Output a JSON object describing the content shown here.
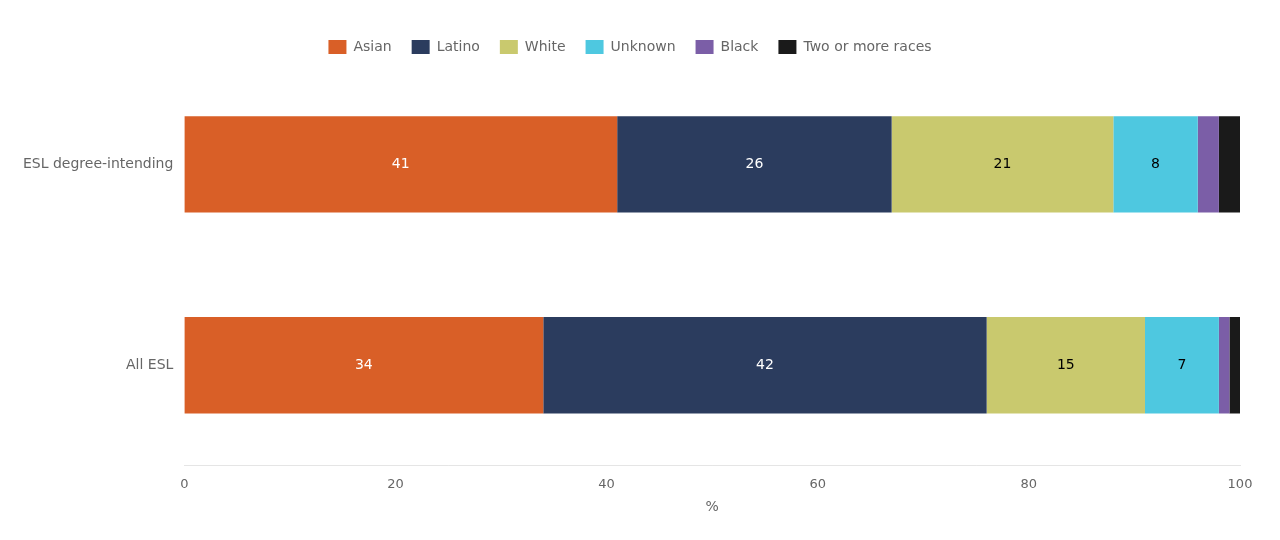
{
  "chart_data": {
    "type": "bar",
    "orientation": "horizontal",
    "stacked": true,
    "categories": [
      "ESL degree-intending",
      "All ESL"
    ],
    "series": [
      {
        "name": "Asian",
        "color": "#d95f27",
        "values": [
          41,
          34
        ],
        "data_labels": true
      },
      {
        "name": "Latino",
        "color": "#2b3c5e",
        "values": [
          26,
          42
        ],
        "data_labels": true
      },
      {
        "name": "White",
        "color": "#c9c96e",
        "values": [
          21,
          15
        ],
        "data_labels": true
      },
      {
        "name": "Unknown",
        "color": "#4ec8e0",
        "values": [
          8,
          7
        ],
        "data_labels": true
      },
      {
        "name": "Black",
        "color": "#7b5ea7",
        "values": [
          2,
          1
        ],
        "data_labels": false
      },
      {
        "name": "Two or more races",
        "color": "#1a1a1a",
        "values": [
          2,
          1
        ],
        "data_labels": false
      }
    ],
    "xlabel": "%",
    "xlim": [
      0,
      100
    ],
    "xticks": [
      0,
      20,
      40,
      60,
      80,
      100
    ],
    "grid": false,
    "legend": "top"
  }
}
